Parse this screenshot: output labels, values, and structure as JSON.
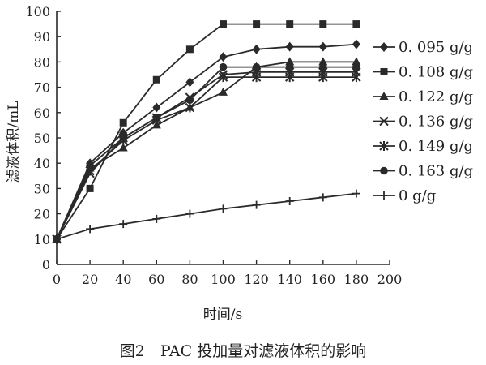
{
  "chart_data": {
    "type": "line",
    "title": "",
    "caption": "图2　PAC 投加量对滤液体积的影响",
    "xlabel": "时间/s",
    "ylabel": "滤液体积/mL",
    "xlim": [
      0,
      200
    ],
    "ylim": [
      0,
      100
    ],
    "xticks": [
      0,
      20,
      40,
      60,
      80,
      100,
      120,
      140,
      160,
      180,
      200
    ],
    "yticks": [
      0,
      10,
      20,
      30,
      40,
      50,
      60,
      70,
      80,
      90,
      100
    ],
    "x": [
      0,
      20,
      40,
      60,
      80,
      100,
      120,
      140,
      160,
      180
    ],
    "grid": false,
    "legend_position": "right",
    "series": [
      {
        "name": "0. 095 g/g",
        "marker": "diamond",
        "values": [
          10,
          40,
          52,
          62,
          72,
          82,
          85,
          86,
          86,
          87
        ]
      },
      {
        "name": "0. 108 g/g",
        "marker": "square",
        "values": [
          10,
          30,
          56,
          73,
          85,
          95,
          95,
          95,
          95,
          95
        ]
      },
      {
        "name": "0. 122 g/g",
        "marker": "triangle",
        "values": [
          10,
          38,
          46,
          55,
          62,
          68,
          78,
          80,
          80,
          80
        ]
      },
      {
        "name": "0. 136 g/g",
        "marker": "x",
        "values": [
          10,
          36,
          50,
          58,
          66,
          75,
          76,
          76,
          76,
          76
        ]
      },
      {
        "name": "0. 149 g/g",
        "marker": "asterisk",
        "values": [
          10,
          37,
          49,
          57,
          62,
          74,
          74,
          74,
          74,
          74
        ]
      },
      {
        "name": "0. 163 g/g",
        "marker": "circle",
        "values": [
          10,
          39,
          50,
          58,
          65,
          78,
          78,
          78,
          78,
          78
        ]
      },
      {
        "name": "0 g/g",
        "marker": "plus",
        "values": [
          10,
          14,
          16,
          18,
          20,
          22,
          23.5,
          25,
          26.5,
          28
        ]
      }
    ]
  }
}
